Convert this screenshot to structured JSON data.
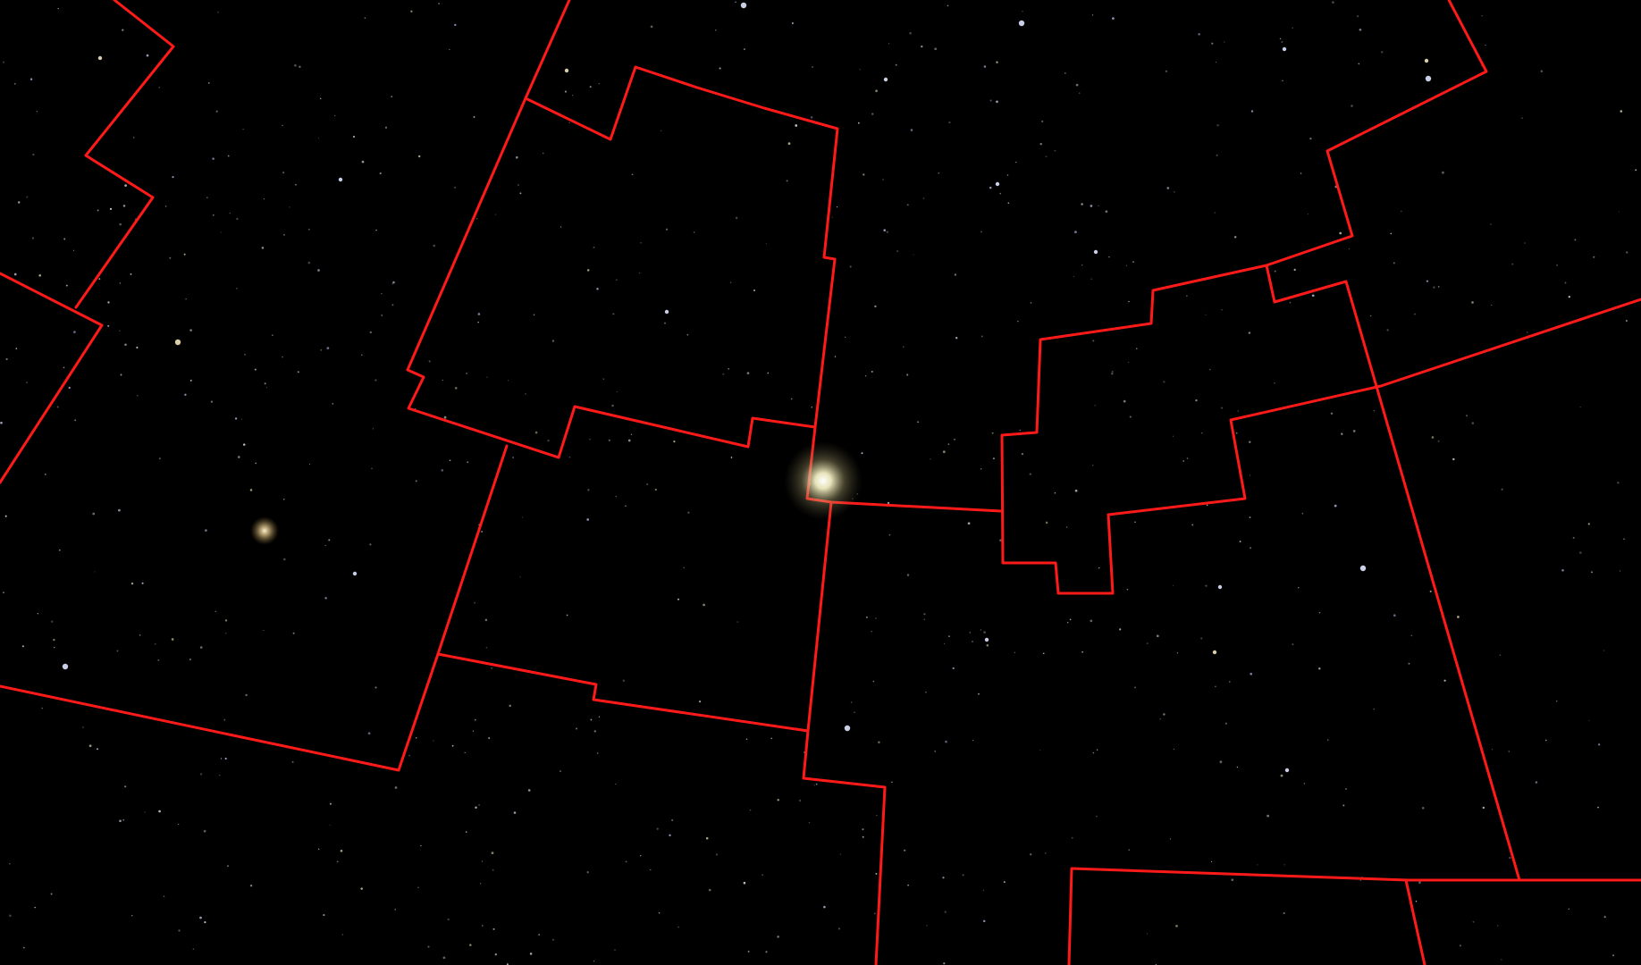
{
  "colors": {
    "background": "#000000",
    "constellation_boundary": "#ff1a1a",
    "planet_glow": "#f3efc4",
    "galaxy_glow": "#e0c486",
    "star_white": "#dfe6ff",
    "star_warm": "#f1e4bc"
  },
  "objects": {
    "bright_planet": "planet-glow",
    "galaxy": "galaxy-glow"
  }
}
